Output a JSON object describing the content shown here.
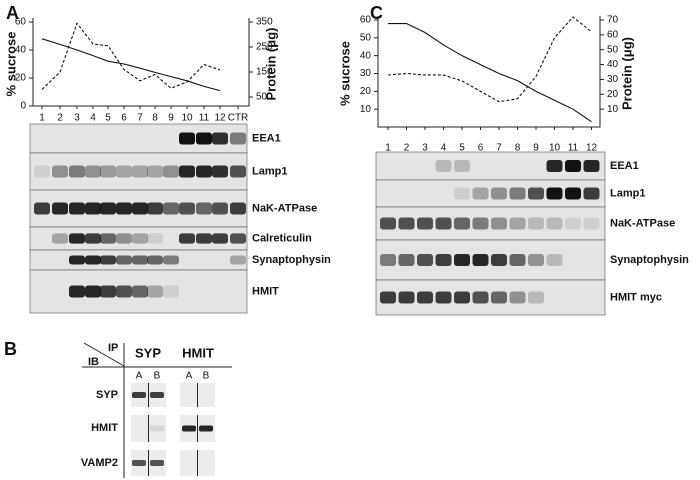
{
  "panel_labels": [
    "A",
    "B",
    "C"
  ],
  "chart_data": [
    {
      "type": "line",
      "ylabel": "% sucrose",
      "y2label": "Protein (μg)",
      "categories": [
        "1",
        "2",
        "3",
        "4",
        "5",
        "6",
        "7",
        "8",
        "9",
        "10",
        "11",
        "12",
        "CTR"
      ],
      "series": [
        {
          "name": "sucrose",
          "color": "#111111",
          "dashed": false,
          "values": [
            48,
            44,
            40,
            36,
            32,
            30,
            27,
            24,
            21,
            18,
            14,
            11,
            null
          ]
        },
        {
          "name": "protein",
          "color": "#111111",
          "dashed": true,
          "axis": "y2",
          "values": [
            80,
            150,
            345,
            262,
            255,
            160,
            115,
            140,
            85,
            110,
            180,
            158,
            null
          ]
        }
      ],
      "ylim": [
        0,
        60
      ],
      "yticks": [
        0,
        20,
        40,
        60
      ],
      "y2lim": [
        14,
        350
      ],
      "y2ticks": [
        50,
        150,
        250,
        350
      ]
    },
    {
      "type": "line",
      "ylabel": "% sucrose",
      "y2label": "Protein (μg)",
      "categories": [
        "1",
        "2",
        "3",
        "4",
        "5",
        "6",
        "7",
        "8",
        "9",
        "10",
        "11",
        "12"
      ],
      "series": [
        {
          "name": "sucrose",
          "color": "#111111",
          "dashed": false,
          "values": [
            58,
            58,
            53,
            46,
            40,
            35,
            30,
            26,
            20,
            15,
            10,
            3
          ]
        },
        {
          "name": "protein",
          "color": "#111111",
          "dashed": true,
          "axis": "y2",
          "values": [
            33,
            34,
            33,
            33,
            29,
            22,
            15,
            17,
            32,
            58,
            72,
            62
          ]
        }
      ],
      "ylim": [
        0,
        60
      ],
      "yticks": [
        10,
        20,
        30,
        40,
        50,
        60
      ],
      "y2lim": [
        -2,
        70
      ],
      "y2ticks": [
        10,
        20,
        30,
        40,
        50,
        60,
        70
      ]
    }
  ],
  "blots_a": [
    "EEA1",
    "Lamp1",
    "NaK-ATPase",
    "Calreticulin",
    "Synaptophysin",
    "HMIT"
  ],
  "blots_c": [
    "EEA1",
    "Lamp1",
    "NaK-ATPase",
    "Synaptophysin",
    "HMIT myc"
  ],
  "panel_b": {
    "ip": "IP",
    "ib": "IB",
    "columns": [
      "SYP",
      "HMIT"
    ],
    "lanes": [
      "A",
      "B",
      "A",
      "B"
    ],
    "rows": [
      "SYP",
      "HMIT",
      "VAMP2"
    ]
  }
}
